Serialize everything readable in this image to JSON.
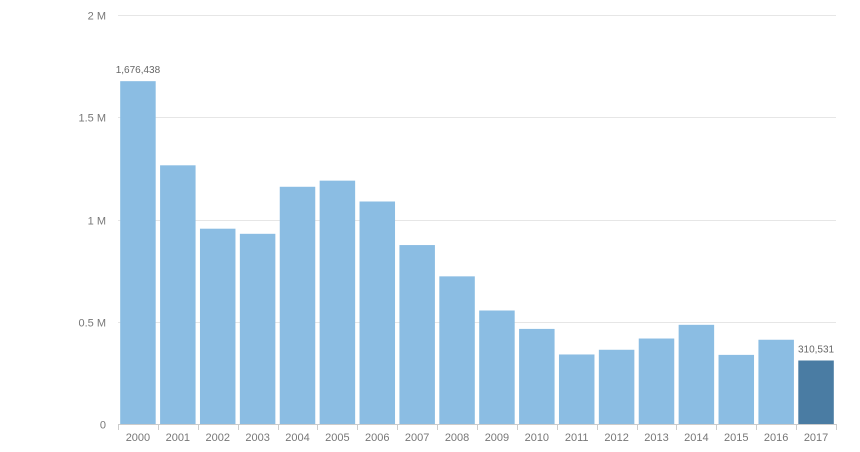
{
  "chart_data": {
    "type": "bar",
    "title": "",
    "xlabel": "",
    "ylabel": "",
    "ylim": [
      0,
      2000000
    ],
    "grid": true,
    "categories": [
      "2000",
      "2001",
      "2002",
      "2003",
      "2004",
      "2005",
      "2006",
      "2007",
      "2008",
      "2009",
      "2010",
      "2011",
      "2012",
      "2013",
      "2014",
      "2015",
      "2016",
      "2017"
    ],
    "values": [
      1676438,
      1265000,
      955000,
      930000,
      1160000,
      1190000,
      1088000,
      875000,
      722000,
      555000,
      465000,
      340000,
      363000,
      418000,
      485000,
      338000,
      412000,
      310531
    ],
    "y_ticks": [
      {
        "value": 0,
        "label": "0"
      },
      {
        "value": 500000,
        "label": "0.5 M"
      },
      {
        "value": 1000000,
        "label": "1 M"
      },
      {
        "value": 1500000,
        "label": "1.5 M"
      },
      {
        "value": 2000000,
        "label": "2 M"
      }
    ],
    "data_labels": [
      {
        "index": 0,
        "text": "1,676,438"
      },
      {
        "index": 17,
        "text": "310,531"
      }
    ],
    "highlight_index": 17,
    "colors": {
      "bar": "#8bbde3",
      "highlight": "#4a7ca3"
    }
  }
}
